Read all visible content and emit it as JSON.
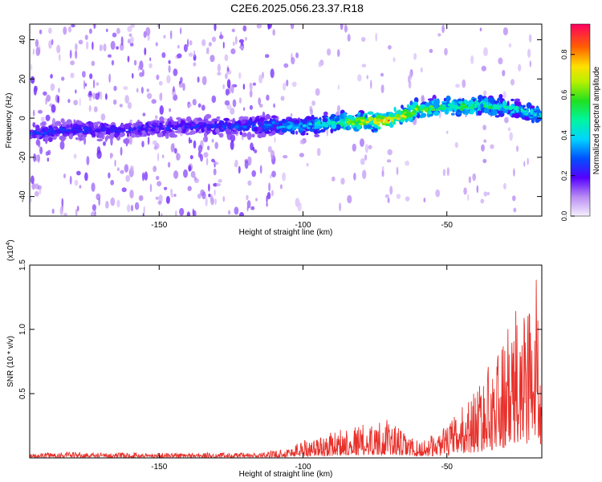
{
  "title": "C2E6.2025.056.23.37.R18",
  "chart_data": [
    {
      "type": "heatmap",
      "xlabel": "Height of straight line (km)",
      "ylabel": "Frequency (Hz)",
      "xlim": [
        -195,
        -17
      ],
      "ylim": [
        -50,
        48
      ],
      "xticks": [
        -150,
        -100,
        -50
      ],
      "yticks": [
        -40,
        -20,
        0,
        20,
        40
      ],
      "colorbar": {
        "label": "Normalized spectral amplitude",
        "range": [
          0,
          0.95
        ],
        "ticks": [
          0.0,
          0.2,
          0.4,
          0.6,
          0.8
        ]
      },
      "ridge": {
        "x": [
          -195,
          -180,
          -160,
          -140,
          -120,
          -100,
          -85,
          -70,
          -60,
          -50,
          -40,
          -30,
          -17
        ],
        "freq": [
          -8,
          -6,
          -6,
          -4,
          -4,
          -4,
          -2,
          -1,
          4,
          6,
          6,
          6,
          1
        ],
        "peak_amplitude": [
          0.3,
          0.25,
          0.25,
          0.25,
          0.3,
          0.4,
          0.6,
          0.85,
          0.65,
          0.55,
          0.6,
          0.5,
          0.45
        ]
      }
    },
    {
      "type": "line",
      "xlabel": "Height of straight line (km)",
      "ylabel": "SNR (10 * v/v)",
      "y_multiplier": "(x10",
      "y_multiplier_exp": "4",
      "y_multiplier_close": ")",
      "xlim": [
        -195,
        -17
      ],
      "ylim": [
        0,
        1.5
      ],
      "xticks": [
        -150,
        -100,
        -50
      ],
      "yticks": [
        0.5,
        1.0,
        1.5
      ],
      "ytick_labels": [
        "0.5",
        "1.0",
        "1.5"
      ],
      "series": [
        {
          "color": "#e8302a",
          "x": [
            -195,
            -185,
            -175,
            -165,
            -155,
            -145,
            -135,
            -125,
            -115,
            -105,
            -100,
            -95,
            -90,
            -85,
            -80,
            -75,
            -70,
            -65,
            -60,
            -55,
            -50,
            -45,
            -40,
            -35,
            -30,
            -25,
            -20,
            -17
          ],
          "envelope": [
            0.03,
            0.05,
            0.04,
            0.04,
            0.04,
            0.04,
            0.04,
            0.04,
            0.04,
            0.08,
            0.15,
            0.16,
            0.2,
            0.25,
            0.26,
            0.28,
            0.3,
            0.2,
            0.13,
            0.18,
            0.25,
            0.4,
            0.55,
            0.75,
            0.95,
            1.2,
            1.45,
            1.3
          ]
        }
      ]
    }
  ]
}
